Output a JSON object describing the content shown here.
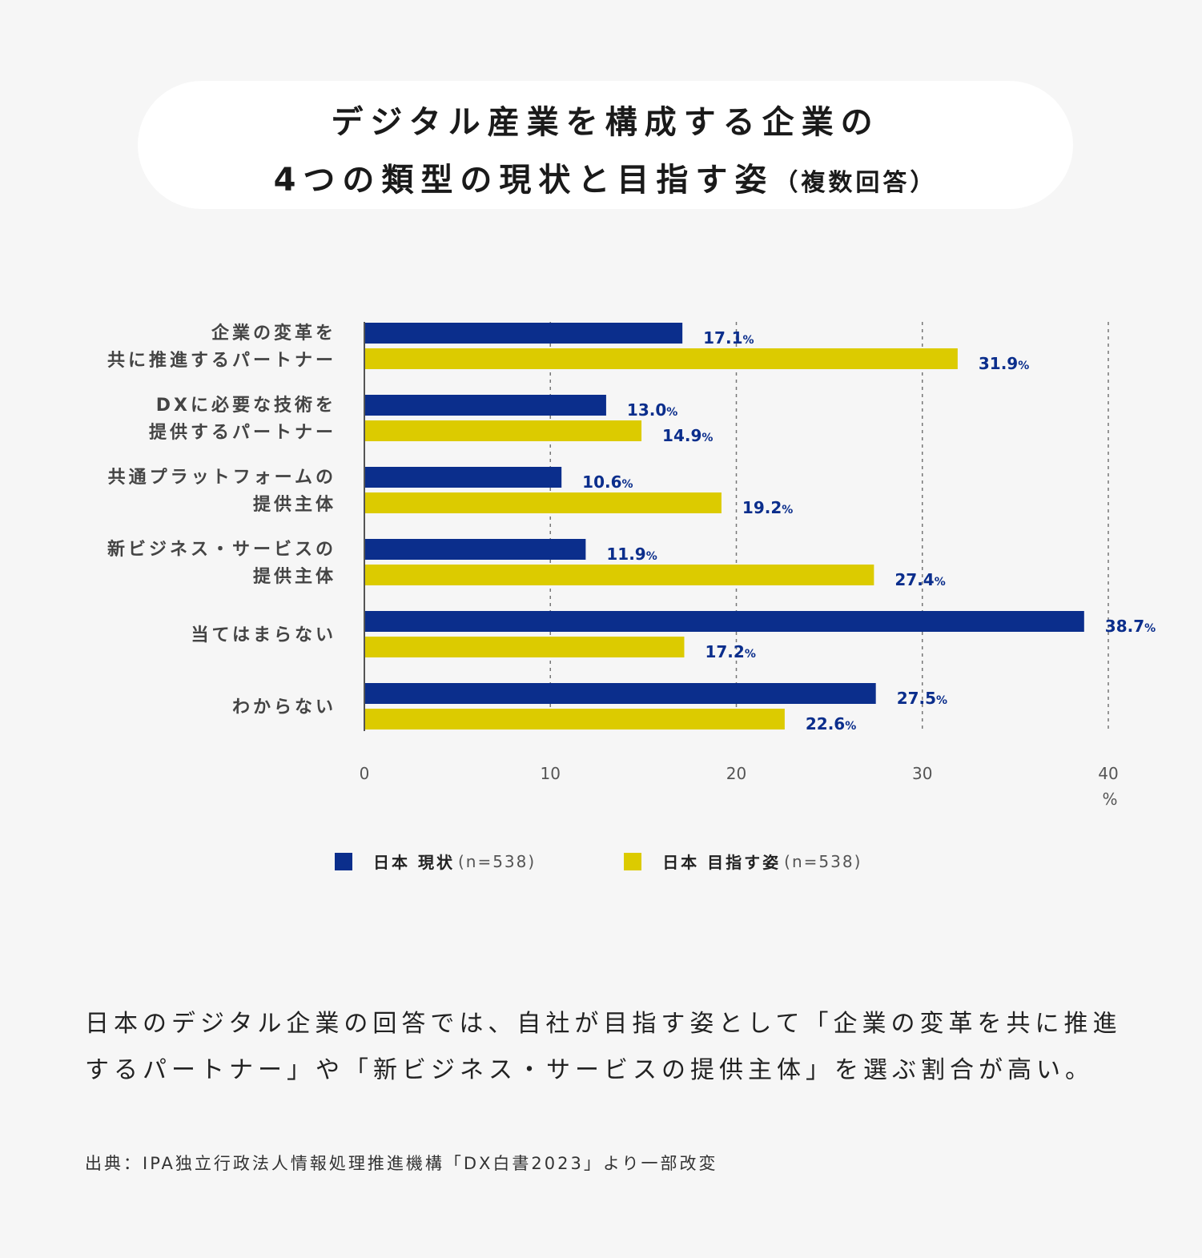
{
  "title": {
    "line1": "デジタル産業を構成する企業の",
    "line2": "4つの類型の現状と目指す姿",
    "line2_suffix": "（複数回答）"
  },
  "chart_data": {
    "type": "bar",
    "orientation": "horizontal",
    "categories": [
      [
        "企業の変革を",
        "共に推進するパートナー"
      ],
      [
        "DXに必要な技術を",
        "提供するパートナー"
      ],
      [
        "共通プラットフォームの",
        "提供主体"
      ],
      [
        "新ビジネス・サービスの",
        "提供主体"
      ],
      [
        "当てはまらない"
      ],
      [
        "わからない"
      ]
    ],
    "series": [
      {
        "name": "日本 現状",
        "n": "(n=538)",
        "color": "#0b2e8c",
        "values": [
          17.1,
          13.0,
          10.6,
          11.9,
          38.7,
          27.5
        ]
      },
      {
        "name": "日本 目指す姿",
        "n": "(n=538)",
        "color": "#dccb00",
        "values": [
          31.9,
          14.9,
          19.2,
          27.4,
          17.2,
          22.6
        ]
      }
    ],
    "value_unit": "%",
    "xlim": [
      0,
      40
    ],
    "xticks": [
      "0",
      "10",
      "20",
      "30",
      "40"
    ],
    "xunit": "%",
    "grid": "dashed vertical"
  },
  "legend": {
    "items": [
      {
        "name": "日本 現状",
        "n": "(n=538)",
        "color": "#0b2e8c"
      },
      {
        "name": "日本 目指す姿",
        "n": "(n=538)",
        "color": "#dccb00"
      }
    ]
  },
  "summary": "日本のデジタル企業の回答では、自社が目指す姿として「企業の変革を共に推進するパートナー」や「新ビジネス・サービスの提供主体」を選ぶ割合が高い。",
  "source": "出典：IPA独立行政法人情報処理推進機構「DX白書2023」より一部改変"
}
